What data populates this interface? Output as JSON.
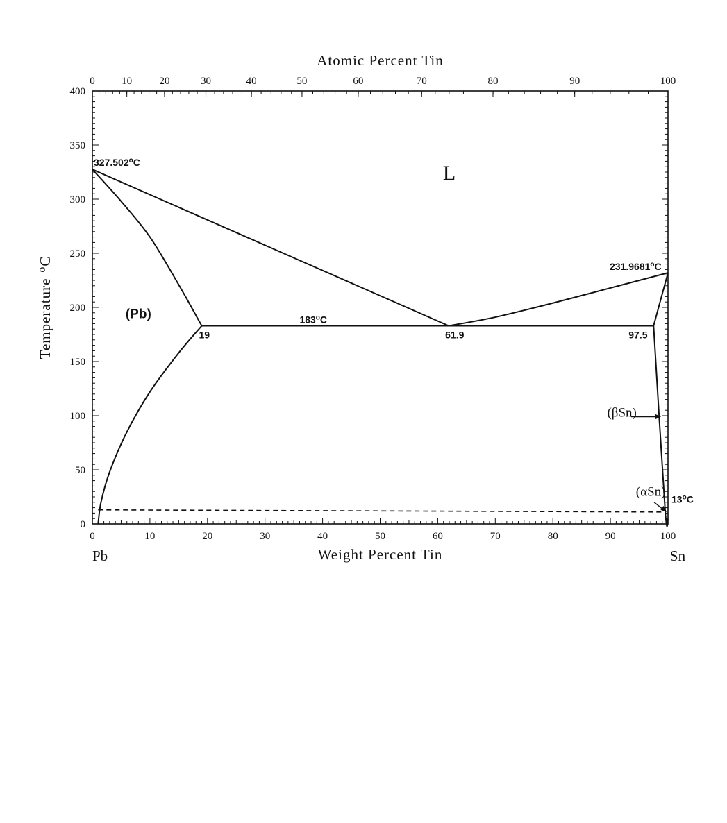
{
  "chart_data": {
    "type": "phase-diagram",
    "title": "",
    "xlabel": "Weight Percent Tin",
    "x2label": "Atomic Percent Tin",
    "ylabel": "Temperature",
    "ylabel_unit": "C",
    "xlim": [
      0,
      100
    ],
    "ylim": [
      0,
      400
    ],
    "x_ticks": [
      0,
      10,
      20,
      30,
      40,
      50,
      60,
      70,
      80,
      90,
      100
    ],
    "y_ticks": [
      0,
      50,
      100,
      150,
      200,
      250,
      300,
      350,
      400
    ],
    "atomic_ticks": [
      {
        "at": 0,
        "wt": 0
      },
      {
        "at": 10,
        "wt": 5.99
      },
      {
        "at": 20,
        "wt": 12.54
      },
      {
        "at": 30,
        "wt": 19.73
      },
      {
        "at": 40,
        "wt": 27.64
      },
      {
        "at": 50,
        "wt": 36.42
      },
      {
        "at": 60,
        "wt": 46.19
      },
      {
        "at": 70,
        "wt": 57.21
      },
      {
        "at": 80,
        "wt": 69.6
      },
      {
        "at": 90,
        "wt": 83.8
      },
      {
        "at": 100,
        "wt": 100
      }
    ],
    "endpoints": {
      "left": "Pb",
      "right": "Sn"
    },
    "curves": [
      {
        "name": "liquidus-pb",
        "points": [
          [
            0,
            327.502
          ],
          [
            61.9,
            183
          ]
        ]
      },
      {
        "name": "liquidus-sn",
        "points": [
          [
            61.9,
            183
          ],
          [
            70,
            191
          ],
          [
            80,
            204
          ],
          [
            90,
            218
          ],
          [
            100,
            231.9681
          ]
        ]
      },
      {
        "name": "solidus-pb",
        "points": [
          [
            0,
            327.502
          ],
          [
            5,
            298
          ],
          [
            10,
            265
          ],
          [
            15,
            221
          ],
          [
            19,
            183
          ]
        ]
      },
      {
        "name": "solvus-pb",
        "points": [
          [
            19,
            183
          ],
          [
            15,
            158
          ],
          [
            10,
            122
          ],
          [
            6,
            85
          ],
          [
            3,
            48
          ],
          [
            1.5,
            20
          ],
          [
            1,
            0
          ]
        ]
      },
      {
        "name": "solidus-sn",
        "points": [
          [
            97.5,
            183
          ],
          [
            100,
            231.9681
          ]
        ]
      },
      {
        "name": "solvus-sn",
        "points": [
          [
            97.5,
            183
          ],
          [
            99.5,
            13
          ],
          [
            100,
            5
          ]
        ]
      },
      {
        "name": "eutectic-isotherm",
        "points": [
          [
            19,
            183
          ],
          [
            97.5,
            183
          ]
        ]
      },
      {
        "name": "alpha-beta-transition",
        "style": "dashed",
        "points": [
          [
            1,
            13
          ],
          [
            99.5,
            11
          ]
        ]
      }
    ],
    "annotations": [
      {
        "text": "327.502",
        "unit": "C",
        "x": 0,
        "y": 327.5
      },
      {
        "text": "231.9681",
        "unit": "C",
        "x": 100,
        "y": 232
      },
      {
        "text": "183",
        "unit": "C",
        "x": 36,
        "y": 183
      },
      {
        "text": "19",
        "x": 19,
        "y": 183
      },
      {
        "text": "61.9",
        "x": 61.9,
        "y": 183
      },
      {
        "text": "97.5",
        "x": 97.5,
        "y": 183
      },
      {
        "text": "13",
        "unit": "C",
        "x": 100,
        "y": 13
      }
    ],
    "phase_labels": [
      {
        "text": "L",
        "x": 62,
        "y": 318
      },
      {
        "text": "(Pb)",
        "x": 8,
        "y": 190
      },
      {
        "text": "(βSn)",
        "x": 92,
        "y": 99
      },
      {
        "text": "(αSn)",
        "x": 97,
        "y": 26
      }
    ],
    "degree_symbol": "o",
    "grid": false,
    "legend": "none"
  }
}
